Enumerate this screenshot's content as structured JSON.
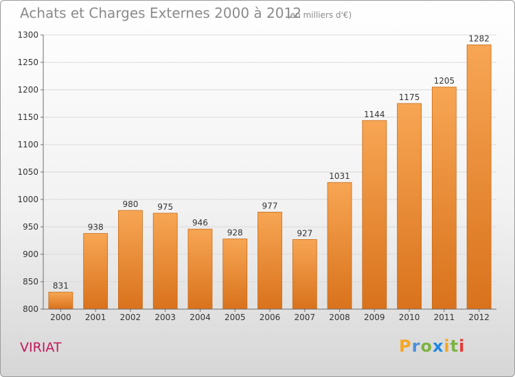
{
  "header": {
    "title": "Achats et Charges Externes 2000 à 2012",
    "unit": "(en milliers d'€)"
  },
  "footer": {
    "commune": "VIRIAT",
    "logo_text": "Proxiti"
  },
  "colors": {
    "bar_top": "#f7a654",
    "bar_bottom": "#d9721c",
    "bar_border": "#c86a18",
    "grid": "#d9d9d9",
    "axis": "#6b6b6b",
    "label": "#333333"
  },
  "chart_data": {
    "type": "bar",
    "categories": [
      "2000",
      "2001",
      "2002",
      "2003",
      "2004",
      "2005",
      "2006",
      "2007",
      "2008",
      "2009",
      "2010",
      "2011",
      "2012"
    ],
    "values": [
      831,
      938,
      980,
      975,
      946,
      928,
      977,
      927,
      1031,
      1144,
      1175,
      1205,
      1282
    ],
    "title": "Achats et Charges Externes 2000 à 2012",
    "xlabel": "",
    "ylabel": "",
    "ylim": [
      800,
      1300
    ],
    "yticks": [
      800,
      850,
      900,
      950,
      1000,
      1050,
      1100,
      1150,
      1200,
      1250,
      1300
    ],
    "grid": true,
    "legend": "none"
  }
}
